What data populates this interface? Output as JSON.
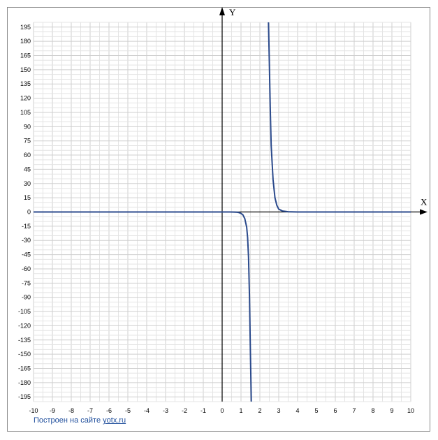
{
  "chart_data": {
    "type": "line",
    "xlabel": "X",
    "ylabel": "Y",
    "xlim": [
      -10,
      10
    ],
    "ylim": [
      -200,
      200
    ],
    "x_ticks": [
      -10,
      -9,
      -8,
      -7,
      -6,
      -5,
      -4,
      -3,
      -2,
      -1,
      0,
      1,
      2,
      3,
      4,
      5,
      6,
      7,
      8,
      9,
      10
    ],
    "y_ticks": [
      195,
      180,
      165,
      150,
      135,
      120,
      105,
      90,
      75,
      60,
      45,
      30,
      15,
      0,
      -15,
      -30,
      -45,
      -60,
      -75,
      -90,
      -105,
      -120,
      -135,
      -150,
      -165,
      -180,
      -195
    ],
    "grid": true,
    "series_color": "#2b4a8c",
    "series": [
      {
        "name": "",
        "segments": [
          [
            [
              -10,
              0
            ],
            [
              -5,
              0
            ],
            [
              0,
              0
            ],
            [
              0.4,
              0
            ],
            [
              0.6,
              -0.1
            ],
            [
              0.8,
              -0.3
            ],
            [
              0.9,
              -0.7
            ],
            [
              1.0,
              -1.5
            ],
            [
              1.1,
              -3
            ],
            [
              1.2,
              -7
            ],
            [
              1.3,
              -16
            ],
            [
              1.35,
              -27
            ],
            [
              1.4,
              -48
            ],
            [
              1.45,
              -90
            ],
            [
              1.5,
              -150
            ],
            [
              1.55,
              -205
            ]
          ],
          [
            [
              2.45,
              205
            ],
            [
              2.5,
              160
            ],
            [
              2.55,
              110
            ],
            [
              2.6,
              70
            ],
            [
              2.7,
              34
            ],
            [
              2.8,
              15
            ],
            [
              2.9,
              7
            ],
            [
              3.0,
              3
            ],
            [
              3.2,
              1
            ],
            [
              3.5,
              0.3
            ],
            [
              4,
              0
            ],
            [
              6,
              0
            ],
            [
              10,
              0
            ]
          ]
        ]
      }
    ]
  },
  "credit": {
    "prefix": "Построен на сайте",
    "link": "yotx.ru"
  }
}
